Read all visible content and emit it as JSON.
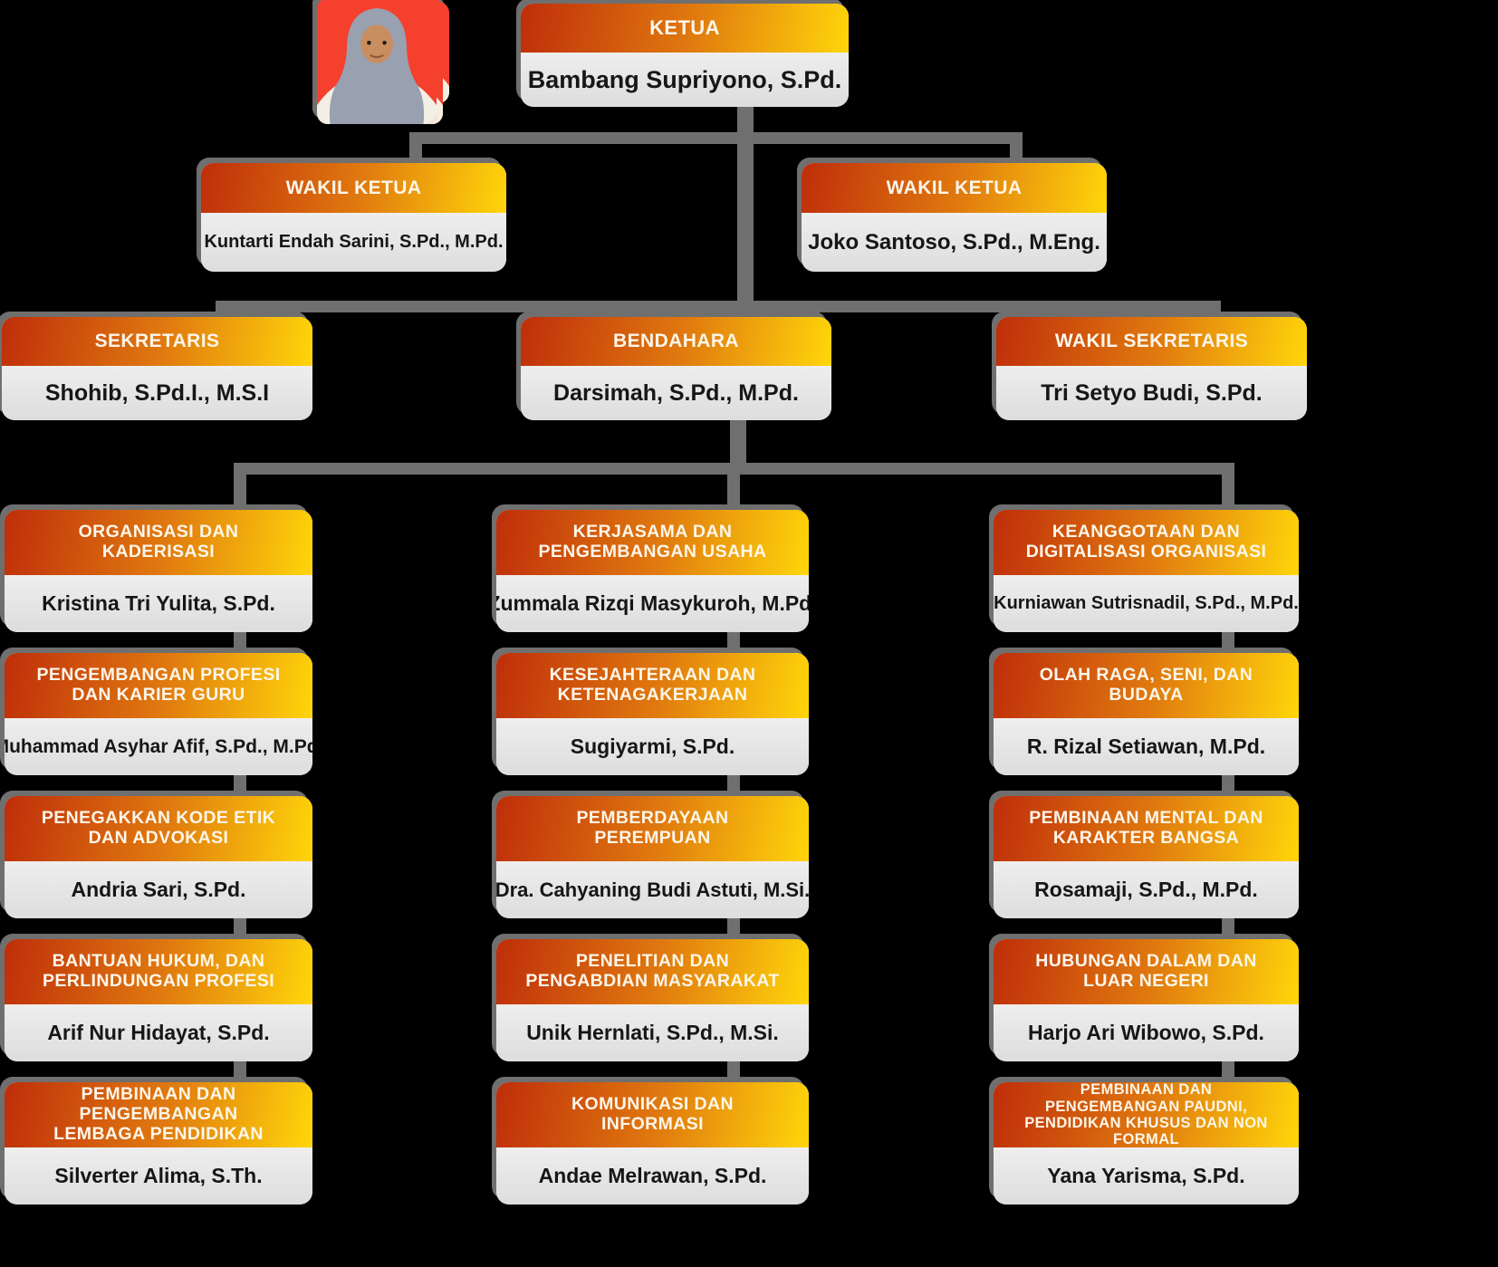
{
  "colors": {
    "page_background": "#000000",
    "connector": "#6f6f6f",
    "header_gradient_start": "#bf2e0a",
    "header_gradient_mid": "#e0790f",
    "header_gradient_end": "#ffd60a",
    "header_text": "#fdf6ea",
    "name_plate": "#e6e6e6",
    "name_text": "#161616",
    "photo_background": "#f5402e"
  },
  "org": {
    "root": {
      "title": "KETUA",
      "name": "Bambang Supriyono, S.Pd.",
      "avatar": "male-peci"
    },
    "deputies": [
      {
        "title": "WAKIL KETUA",
        "name": "Kuntarti Endah Sarini, S.Pd., M.Pd.",
        "avatar": "female-hijab"
      },
      {
        "title": "WAKIL KETUA",
        "name": "Joko Santoso, S.Pd., M.Eng.",
        "avatar": "male-peci-glasses"
      }
    ],
    "officers": [
      {
        "title": "SEKRETARIS",
        "name": "Shohib, S.Pd.I., M.S.I",
        "avatar": "male-peci"
      },
      {
        "title": "BENDAHARA",
        "name": "Darsimah, S.Pd., M.Pd.",
        "avatar": "female-hijab"
      },
      {
        "title": "WAKIL SEKRETARIS",
        "name": "Tri Setyo Budi, S.Pd.",
        "avatar": "male-peci-glasses"
      }
    ],
    "departments": [
      [
        {
          "title": "ORGANISASI DAN KADERISASI",
          "name": "Kristina Tri Yulita, S.Pd.",
          "avatar": "female-hair"
        },
        {
          "title": "PENGEMBANGAN PROFESI DAN KARIER GURU",
          "name": "Muhammad Asyhar Afif, S.Pd., M.Pd.",
          "avatar": "male-peci"
        },
        {
          "title": "PENEGAKKAN KODE ETIK DAN ADVOKASI",
          "name": "Andria Sari, S.Pd.",
          "avatar": "female-hijab"
        },
        {
          "title": "BANTUAN HUKUM, DAN PERLINDUNGAN PROFESI",
          "name": "Arif Nur Hidayat, S.Pd.",
          "avatar": "male"
        },
        {
          "title": "PEMBINAAN DAN PENGEMBANGAN LEMBAGA PENDIDIKAN",
          "name": "Silverter Alima, S.Th.",
          "avatar": "male-peci"
        }
      ],
      [
        {
          "title": "KERJASAMA DAN PENGEMBANGAN USAHA",
          "name": "Zummala Rizqi Masykuroh, M.Pd.",
          "avatar": "female-hijab"
        },
        {
          "title": "KESEJAHTERAAN DAN KETENAGAKERJAAN",
          "name": "Sugiyarmi, S.Pd.",
          "avatar": "female-hijab"
        },
        {
          "title": "PEMBERDAYAAN PEREMPUAN",
          "name": "Dra. Cahyaning Budi Astuti, M.Si.",
          "avatar": "female-hijab-glasses"
        },
        {
          "title": "PENELITIAN DAN PENGABDIAN MASYARAKAT",
          "name": "Unik Hernlati, S.Pd., M.Si.",
          "avatar": "female-hijab"
        },
        {
          "title": "KOMUNIKASI DAN INFORMASI",
          "name": "Andae Melrawan, S.Pd.",
          "avatar": "male-peci-glasses"
        }
      ],
      [
        {
          "title": "KEANGGOTAAN DAN DIGITALISASI ORGANISASI",
          "name": "Kurniawan Sutrisnadil, S.Pd., M.Pd.",
          "avatar": "male-peci"
        },
        {
          "title": "OLAH RAGA, SENI, DAN BUDAYA",
          "name": "R. Rizal Setiawan, M.Pd.",
          "avatar": "male-peci"
        },
        {
          "title": "PEMBINAAN MENTAL DAN KARAKTER BANGSA",
          "name": "Rosamaji, S.Pd., M.Pd.",
          "avatar": "male-peci"
        },
        {
          "title": "HUBUNGAN DALAM DAN LUAR NEGERI",
          "name": "Harjo Ari Wibowo, S.Pd.",
          "avatar": "male-peci"
        },
        {
          "title": "PEMBINAAN DAN PENGEMBANGAN PAUDNI, PENDIDIKAN KHUSUS DAN NON FORMAL",
          "name": "Yana Yarisma, S.Pd.",
          "avatar": "female-hijab-gray"
        }
      ]
    ]
  }
}
